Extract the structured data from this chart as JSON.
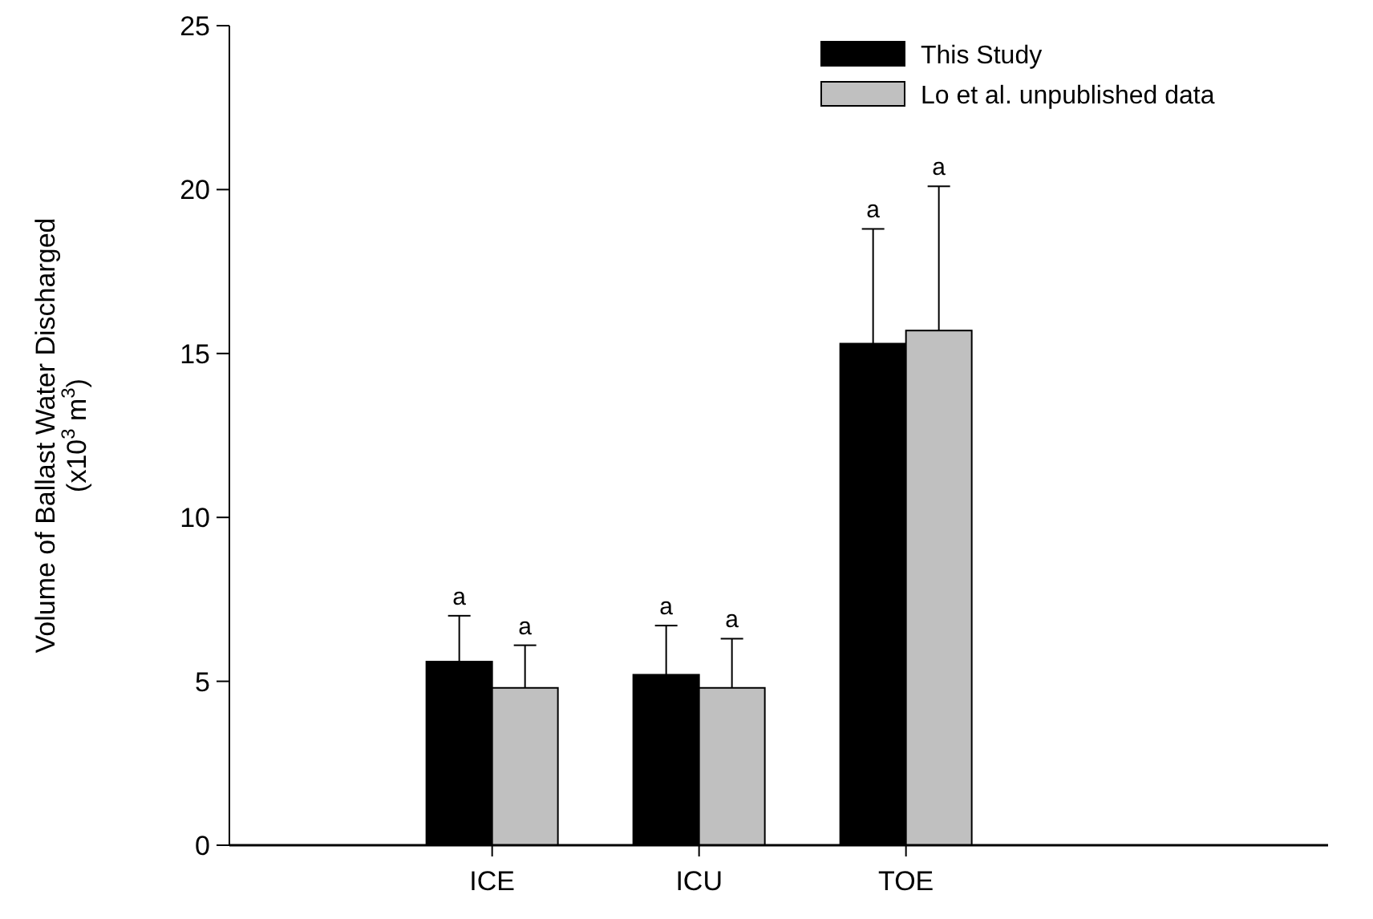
{
  "chart_data": {
    "type": "bar",
    "ylabel": "Volume of Ballast Water Discharged\n(x10$^{3}$ m$^{3}$)",
    "categories": [
      "ICE",
      "ICU",
      "TOE"
    ],
    "series": [
      {
        "name": "This Study",
        "color": "#000000",
        "values": [
          5.6,
          5.2,
          15.3
        ],
        "errors": [
          [
            5.6,
            7.0
          ],
          [
            5.2,
            6.7
          ],
          [
            15.3,
            18.8
          ]
        ]
      },
      {
        "name": "Lo et al. unpublished data",
        "color": "#c0c0c0",
        "values": [
          4.8,
          4.8,
          15.7
        ],
        "errors": [
          [
            4.8,
            6.1
          ],
          [
            4.8,
            6.3
          ],
          [
            15.7,
            20.1
          ]
        ]
      }
    ],
    "annotations": [
      "a",
      "a",
      "a",
      "a",
      "a",
      "a"
    ],
    "ylim": [
      0,
      25
    ],
    "yticks": [
      0,
      5,
      10,
      15,
      20,
      25
    ],
    "legend": "top right",
    "grid": false
  }
}
